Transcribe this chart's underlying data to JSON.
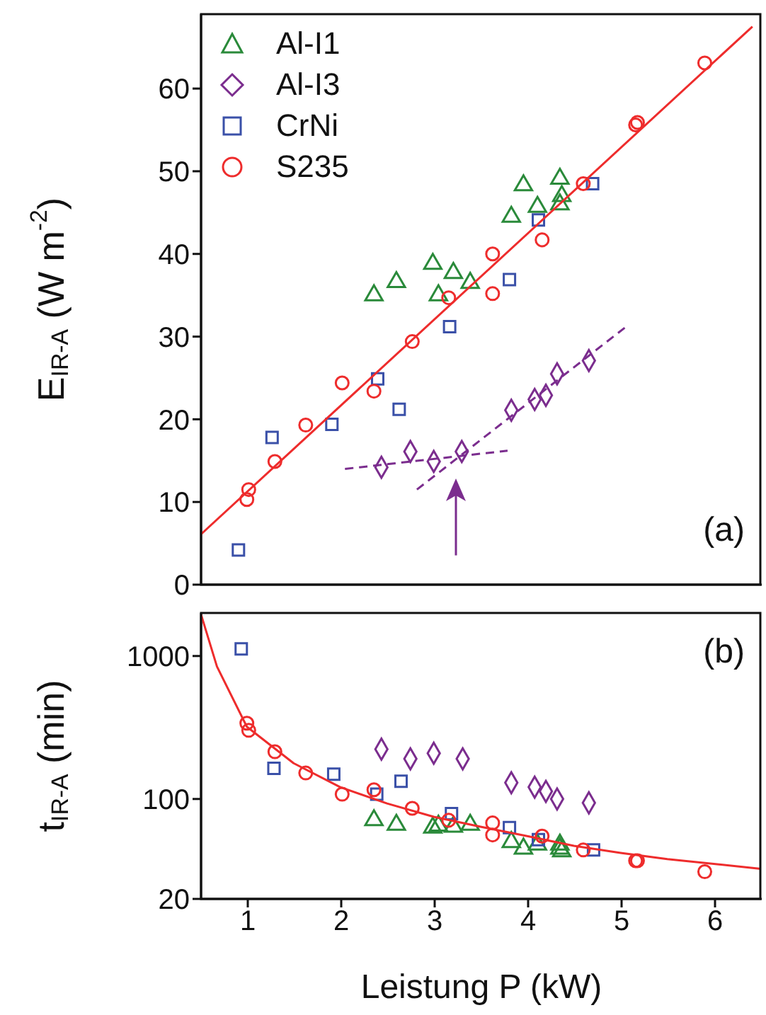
{
  "chart_data": [
    {
      "type": "scatter",
      "ylabel": "E$_{IR-A}$ (W m$^{-2}$)",
      "xlim": [
        0.5,
        6.5
      ],
      "xticks": [
        1,
        2,
        3,
        4,
        5,
        6
      ],
      "ylim": [
        0,
        69
      ],
      "yticks": [
        0,
        10,
        20,
        30,
        40,
        50,
        60
      ],
      "tick_labels": "y",
      "legend": "top left",
      "annotations": [
        "(a)"
      ],
      "series": [
        {
          "name": "Al-I1",
          "type": "scatter",
          "marker": "triangle",
          "color": "#2a8a3a",
          "x": [
            3.95,
            4.34,
            4.36,
            4.34,
            4.1,
            3.82,
            2.98,
            3.2,
            3.38,
            2.59,
            2.35,
            3.04
          ],
          "values": [
            48.3,
            49.1,
            47.0,
            46.0,
            45.7,
            44.5,
            38.8,
            37.7,
            36.5,
            36.6,
            35.0,
            35.0
          ]
        },
        {
          "name": "Al-I3",
          "type": "scatter",
          "marker": "diamond",
          "color": "#7b2d8e",
          "x": [
            2.43,
            2.74,
            2.99,
            3.29,
            3.82,
            4.07,
            4.19,
            4.31,
            4.65
          ],
          "values": [
            14.2,
            16.1,
            14.9,
            16.1,
            21.1,
            22.4,
            22.9,
            25.5,
            27.1
          ]
        },
        {
          "name": "CrNi",
          "type": "scatter",
          "marker": "square",
          "color": "#3a50a8",
          "x": [
            4.69,
            4.11,
            3.8,
            3.16,
            2.39,
            2.62,
            1.9,
            1.26,
            0.9
          ],
          "values": [
            48.5,
            44.1,
            36.9,
            31.2,
            24.9,
            21.2,
            19.4,
            17.8,
            4.2
          ]
        },
        {
          "name": "S235",
          "type": "scatter",
          "marker": "circle",
          "color": "#ee2c2c",
          "x": [
            5.89,
            5.15,
            5.17,
            4.59,
            4.15,
            3.62,
            3.62,
            3.15,
            2.76,
            2.01,
            2.35,
            1.62,
            1.29,
            1.01,
            0.99
          ],
          "values": [
            63.1,
            55.6,
            55.9,
            48.5,
            41.7,
            40.0,
            35.2,
            34.7,
            29.4,
            24.4,
            23.4,
            19.3,
            14.9,
            11.5,
            10.3
          ]
        },
        {
          "type": "line",
          "color": "#ee2c2c",
          "line_style": "solid",
          "x": [
            0.5,
            6.4
          ],
          "values": [
            6.1,
            67.5
          ]
        },
        {
          "type": "line",
          "color": "#7b2d8e",
          "line_style": "dashed",
          "x": [
            2.04,
            3.78
          ],
          "values": [
            14.0,
            16.2
          ]
        },
        {
          "type": "line",
          "color": "#7b2d8e",
          "line_style": "dashed",
          "x": [
            2.81,
            5.06
          ],
          "values": [
            11.5,
            31.3
          ]
        }
      ]
    },
    {
      "type": "scatter",
      "xlabel": "Leistung P (kW)",
      "ylabel": "t$_{IR-A}$ (min)",
      "log": true,
      "xlim": [
        0.5,
        6.5
      ],
      "xticks": [
        1,
        2,
        3,
        4,
        5,
        6
      ],
      "ylim": [
        20,
        2000
      ],
      "yticks": [
        20,
        100,
        1000
      ],
      "annotations": [
        "(b)"
      ],
      "series": [
        {
          "type": "scatter",
          "marker": "triangle",
          "color": "#2a8a3a",
          "x": [
            2.35,
            2.59,
            2.98,
            3.04,
            3.2,
            3.38,
            3.82,
            3.95,
            4.1,
            4.34,
            4.36,
            4.34
          ],
          "values": [
            71,
            66,
            63,
            65,
            64,
            66,
            50,
            45,
            48,
            48,
            43,
            45
          ]
        },
        {
          "type": "scatter",
          "marker": "diamond",
          "color": "#7b2d8e",
          "x": [
            2.43,
            2.74,
            2.99,
            3.3,
            3.82,
            4.07,
            4.19,
            4.31,
            4.65
          ],
          "values": [
            223,
            191,
            209,
            191,
            130,
            121,
            113,
            100,
            94
          ]
        },
        {
          "type": "scatter",
          "marker": "square",
          "color": "#3a50a8",
          "x": [
            0.93,
            1.28,
            1.92,
            2.38,
            2.64,
            3.18,
            3.8,
            4.11,
            4.7
          ],
          "values": [
            1120,
            164,
            149,
            108,
            133,
            79,
            63,
            52,
            44
          ]
        },
        {
          "type": "scatter",
          "marker": "circle",
          "color": "#ee2c2c",
          "x": [
            0.99,
            1.01,
            1.29,
            1.62,
            2.01,
            2.35,
            2.76,
            3.15,
            3.62,
            3.62,
            4.15,
            4.59,
            5.15,
            5.17,
            5.89
          ],
          "values": [
            339,
            302,
            214,
            152,
            108,
            116,
            86,
            71,
            68,
            56,
            55,
            44,
            37,
            37,
            31
          ]
        },
        {
          "type": "line",
          "color": "#ee2c2c",
          "line_style": "solid",
          "x": [
            0.5,
            0.67,
            0.99,
            1.49,
            1.99,
            2.49,
            2.99,
            3.49,
            3.99,
            4.49,
            4.99,
            5.49,
            6.49
          ],
          "values": [
            1950,
            845,
            320,
            178,
            121,
            93,
            75,
            64,
            55,
            47,
            42,
            38,
            32.5
          ]
        }
      ]
    }
  ]
}
